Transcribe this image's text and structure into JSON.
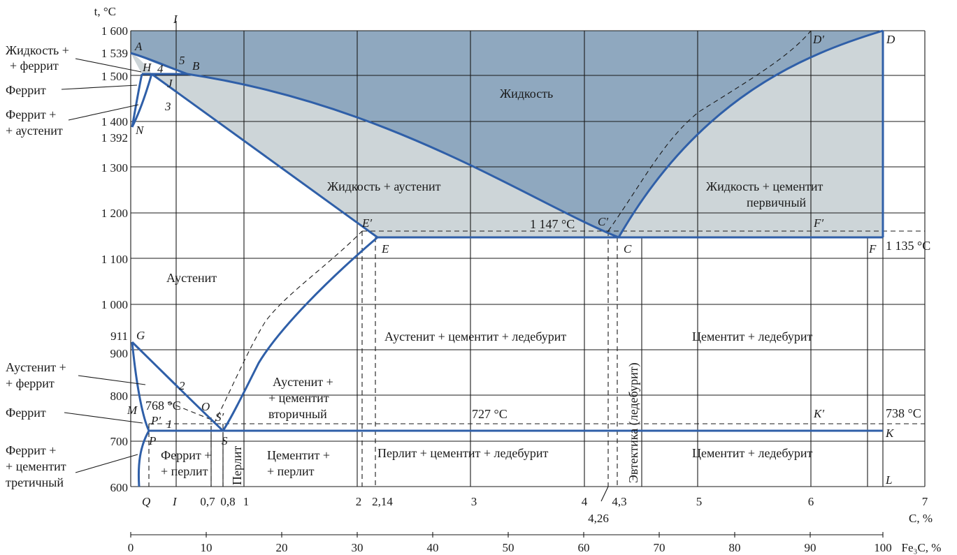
{
  "axes": {
    "y_title": "t, °C",
    "y_ticks": [
      "1 600",
      "1 539",
      "1 500",
      "1 400",
      "1 392",
      "1 300",
      "1 200",
      "1 100",
      "1 000",
      "911",
      "900",
      "800",
      "700",
      "600"
    ],
    "x_carbon_title": "C, %",
    "x_carbon_ticks": [
      "1",
      "2",
      "2,14",
      "3",
      "4",
      "4,3",
      "5",
      "6",
      "7",
      "0,7",
      "0,8",
      "4,26"
    ],
    "x_fe3c_title": "Fe₃C, %",
    "x_fe3c_ticks": [
      "0",
      "10",
      "20",
      "30",
      "40",
      "50",
      "60",
      "70",
      "80",
      "90",
      "100"
    ]
  },
  "points": {
    "A": "A",
    "H": "H",
    "N": "N",
    "B": "B",
    "J": "J",
    "D": "D",
    "D_prime": "D′",
    "C": "C",
    "C_prime": "C′",
    "E": "E",
    "E_prime": "E′",
    "F": "F",
    "F_prime": "F′",
    "G": "G",
    "P": "P",
    "P_prime": "P′",
    "S": "S",
    "S_prime": "S′",
    "Q": "Q",
    "K": "K",
    "K_prime": "K′",
    "L": "L",
    "M": "M",
    "O": "O",
    "I_top": "I",
    "I_bottom": "I",
    "n1": "1",
    "n2": "2",
    "n3": "3",
    "n4": "4",
    "n5": "5"
  },
  "temperatures": {
    "eut_stable": "1 147 °C",
    "eut_metastable": "1 135 °C",
    "eutectoid_stable": "738 °C",
    "eutectoid_metastable": "727 °C",
    "curie": "768 °C"
  },
  "regions": {
    "liquid": "Жидкость",
    "liquid_austenite": "Жидкость + аустенит",
    "liquid_cementite_1": "Жидкость + цементит",
    "liquid_cementite_2": "первичный",
    "austenite": "Аустенит",
    "aus_cem_led": "Аустенит + цементит + ледебурит",
    "cem_led_upper": "Цементит + ледебурит",
    "cem_led_lower": "Цементит + ледебурит",
    "aus_cem_sec_1": "Аустенит +",
    "aus_cem_sec_2": "+ цементит",
    "aus_cem_sec_3": "вторичный",
    "ferr_perl_1": "Феррит +",
    "ferr_perl_2": "+ перлит",
    "perlite": "Перлит",
    "cem_perl_1": "Цементит +",
    "cem_perl_2": "+ перлит",
    "perl_cem_led": "Перлит + цементит + ледебурит",
    "eutectic": "Эвтектика (ледебурит)"
  },
  "callouts": {
    "liq_ferrite_1": "Жидкость +",
    "liq_ferrite_2": "+ феррит",
    "ferrite_top": "Феррит",
    "ferr_aus_1": "Феррит +",
    "ferr_aus_2": "+ аустенит",
    "aus_ferr_1": "Аустенит +",
    "aus_ferr_2": "+ феррит",
    "ferrite_bottom": "Феррит",
    "ferr_cem_1": "Феррит +",
    "ferr_cem_2": "+ цементит",
    "ferr_cem_3": "третичный"
  },
  "colors": {
    "liquid_fill": "#8fa8bf",
    "two_phase_fill": "#cdd5d8",
    "phase_lines": "#2f5fa8",
    "grid": "#1a1a1a"
  }
}
